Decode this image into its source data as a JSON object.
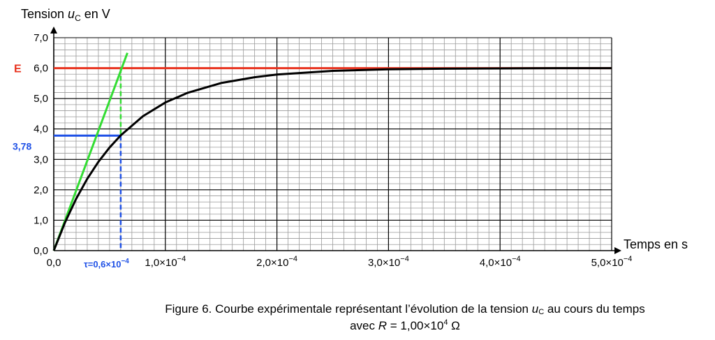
{
  "chart_data": {
    "type": "line",
    "ylabel": {
      "prefix": "Tension ",
      "var": "u",
      "sub": "C",
      "suffix": " en V"
    },
    "xlabel": "Temps en s",
    "xlim": [
      0,
      0.0005
    ],
    "ylim": [
      0,
      7
    ],
    "x_ticks": [
      {
        "value": 0,
        "label": "0,0",
        "exp": ""
      },
      {
        "value": 0.0001,
        "label": "1,0×10",
        "exp": "−4"
      },
      {
        "value": 0.0002,
        "label": "2,0×10",
        "exp": "−4"
      },
      {
        "value": 0.0003,
        "label": "3,0×10",
        "exp": "−4"
      },
      {
        "value": 0.0004,
        "label": "4,0×10",
        "exp": "−4"
      },
      {
        "value": 0.0005,
        "label": "5,0×10",
        "exp": "−4"
      }
    ],
    "y_ticks": [
      {
        "value": 0,
        "label": "0,0"
      },
      {
        "value": 1,
        "label": "1,0"
      },
      {
        "value": 2,
        "label": "2,0"
      },
      {
        "value": 3,
        "label": "3,0"
      },
      {
        "value": 4,
        "label": "4,0"
      },
      {
        "value": 5,
        "label": "5,0"
      },
      {
        "value": 6,
        "label": "6,0"
      },
      {
        "value": 7,
        "label": "7,0"
      }
    ],
    "grid": true,
    "grid_minor": {
      "x_step": 1e-05,
      "y_step": 0.2
    },
    "series": [
      {
        "kind": "curve",
        "color": "#000000",
        "x": [
          0,
          1e-05,
          2e-05,
          3e-05,
          4e-05,
          5e-05,
          6e-05,
          8e-05,
          0.0001,
          0.00012,
          0.00015,
          0.00018,
          0.0002,
          0.00025,
          0.0003,
          0.00035,
          0.0004,
          0.00045,
          0.0005
        ],
        "y": [
          0,
          0.92,
          1.7,
          2.36,
          2.92,
          3.39,
          3.79,
          4.42,
          4.87,
          5.19,
          5.51,
          5.7,
          5.79,
          5.91,
          5.96,
          5.98,
          5.99,
          6.0,
          6.0
        ]
      },
      {
        "kind": "asymptote",
        "color": "#e8321e",
        "x": [
          0,
          0.0005
        ],
        "y": [
          6.0,
          6.0
        ]
      },
      {
        "kind": "tangent",
        "color": "#33dd33",
        "x": [
          0,
          6.6e-05
        ],
        "y": [
          0,
          6.5
        ]
      }
    ],
    "annotations": {
      "E": {
        "label": "E",
        "value": 6.0,
        "color": "#e8321e"
      },
      "v_tau": {
        "label": "3,78",
        "value": 3.78,
        "color": "#1e50e6"
      },
      "tau": {
        "label": "τ=0,6×10",
        "exp": "−4",
        "value": 6e-05,
        "color": "#1e50e6"
      }
    }
  },
  "caption": {
    "line1_a": "Figure 6. Courbe expérimentale représentant l’évolution de la tension ",
    "line1_var": "u",
    "line1_sub": "C",
    "line1_b": " au cours du temps",
    "line2_a": "avec ",
    "line2_var": "R",
    "line2_b": " = 1,00×10",
    "line2_exp": "4",
    "line2_c": " Ω"
  }
}
